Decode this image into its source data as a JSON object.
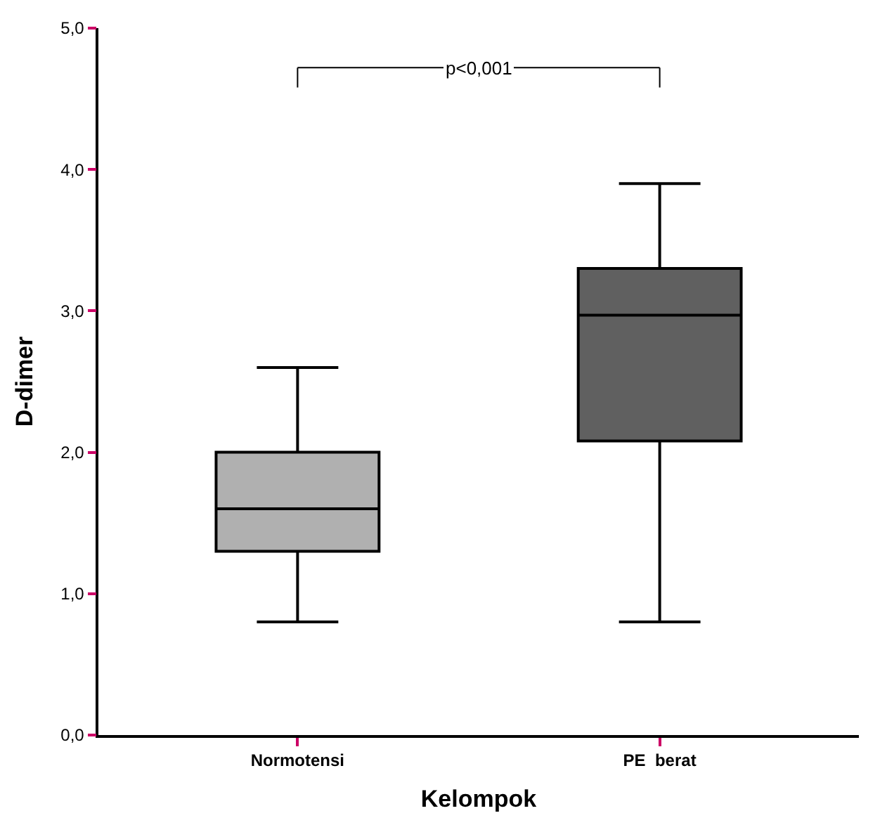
{
  "chart_data": {
    "type": "box",
    "xlabel": "Kelompok",
    "ylabel": "D-dimer",
    "categories": [
      "Normotensi",
      "PE  berat"
    ],
    "boxes": [
      {
        "low": 0.8,
        "q1": 1.3,
        "median": 1.6,
        "q3": 2.0,
        "high": 2.6
      },
      {
        "low": 0.8,
        "q1": 2.08,
        "median": 2.97,
        "q3": 3.3,
        "high": 3.9
      }
    ],
    "colors": [
      "#b0b0b0",
      "#606060"
    ],
    "ylim": [
      0,
      5
    ],
    "yticks": [
      {
        "value": 0,
        "label": "0,0"
      },
      {
        "value": 1,
        "label": "1,0"
      },
      {
        "value": 2,
        "label": "2,0"
      },
      {
        "value": 3,
        "label": "3,0"
      },
      {
        "value": 4,
        "label": "4,0"
      },
      {
        "value": 5,
        "label": "5,0"
      }
    ],
    "annotations": [
      "p<0,001"
    ],
    "grid": false
  }
}
